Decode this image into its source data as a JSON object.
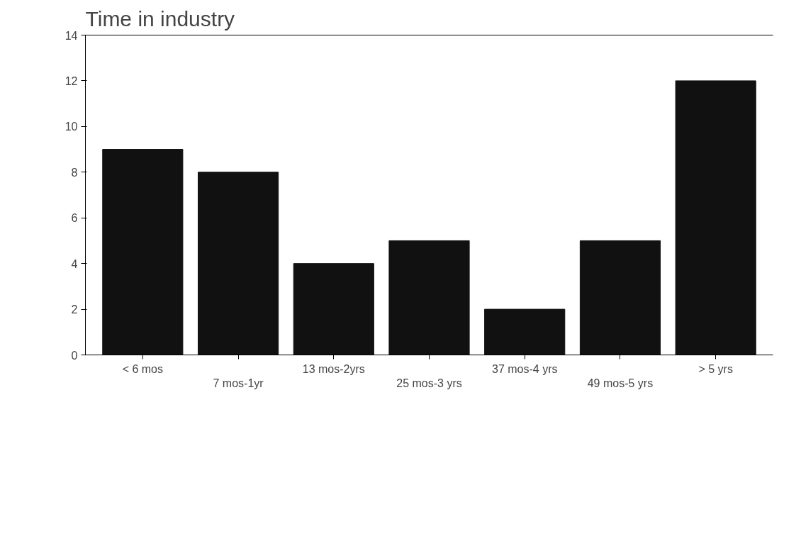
{
  "chart_data": {
    "type": "bar",
    "title": "Time in industry",
    "categories": [
      "< 6 mos",
      "7 mos-1yr",
      "13 mos-2yrs",
      "25 mos-3 yrs",
      "37 mos-4 yrs",
      "49 mos-5 yrs",
      "> 5 yrs"
    ],
    "values": [
      9,
      8,
      4,
      5,
      2,
      5,
      12
    ],
    "color": "#111111",
    "ylim": [
      0,
      14
    ],
    "yticks": [
      0,
      2,
      4,
      6,
      8,
      10,
      12,
      14
    ],
    "grid": false
  }
}
